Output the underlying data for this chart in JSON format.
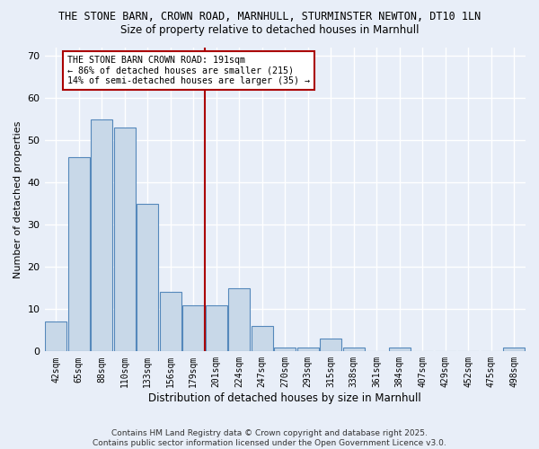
{
  "title1": "THE STONE BARN, CROWN ROAD, MARNHULL, STURMINSTER NEWTON, DT10 1LN",
  "title2": "Size of property relative to detached houses in Marnhull",
  "xlabel": "Distribution of detached houses by size in Marnhull",
  "ylabel": "Number of detached properties",
  "categories": [
    "42sqm",
    "65sqm",
    "88sqm",
    "110sqm",
    "133sqm",
    "156sqm",
    "179sqm",
    "201sqm",
    "224sqm",
    "247sqm",
    "270sqm",
    "293sqm",
    "315sqm",
    "338sqm",
    "361sqm",
    "384sqm",
    "407sqm",
    "429sqm",
    "452sqm",
    "475sqm",
    "498sqm"
  ],
  "values": [
    7,
    46,
    55,
    53,
    35,
    14,
    11,
    11,
    15,
    6,
    1,
    1,
    3,
    1,
    0,
    1,
    0,
    0,
    0,
    0,
    1
  ],
  "bar_color": "#c8d8e8",
  "bar_edge_color": "#5588bb",
  "vline_color": "#aa0000",
  "annotation_text": "THE STONE BARN CROWN ROAD: 191sqm\n← 86% of detached houses are smaller (215)\n14% of semi-detached houses are larger (35) →",
  "annotation_box_color": "#ffffff",
  "annotation_box_edge": "#aa0000",
  "ylim": [
    0,
    72
  ],
  "yticks": [
    0,
    10,
    20,
    30,
    40,
    50,
    60,
    70
  ],
  "bg_color": "#e8eef8",
  "grid_color": "#ffffff",
  "footer": "Contains HM Land Registry data © Crown copyright and database right 2025.\nContains public sector information licensed under the Open Government Licence v3.0."
}
